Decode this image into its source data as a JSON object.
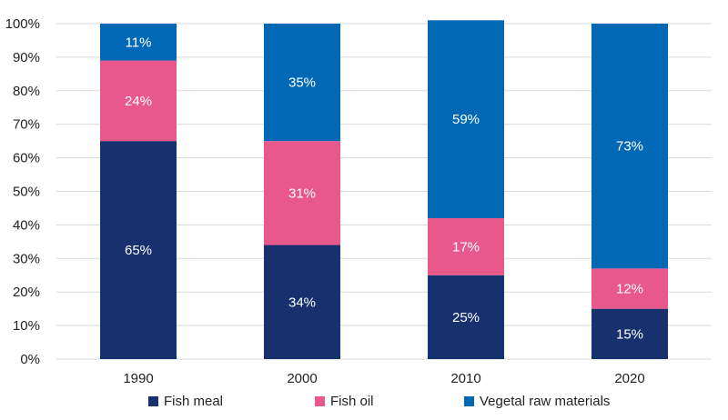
{
  "chart_data": {
    "type": "bar",
    "stacked": true,
    "categories": [
      "1990",
      "2000",
      "2010",
      "2020"
    ],
    "series": [
      {
        "name": "Fish meal",
        "color": "#17306e",
        "values": [
          65,
          34,
          25,
          15
        ],
        "labels": [
          "65%",
          "34%",
          "25%",
          "15%"
        ]
      },
      {
        "name": "Fish oil",
        "color": "#e8588a",
        "values": [
          24,
          31,
          17,
          12
        ],
        "labels": [
          "24%",
          "31%",
          "17%",
          "12%"
        ]
      },
      {
        "name": "Vegetal raw materials",
        "color": "#0068b5",
        "values": [
          11,
          35,
          59,
          73
        ],
        "labels": [
          "11%",
          "35%",
          "59%",
          "73%"
        ]
      }
    ],
    "ylim": [
      0,
      100
    ],
    "yticks": [
      "0%",
      "10%",
      "20%",
      "30%",
      "40%",
      "50%",
      "60%",
      "70%",
      "80%",
      "90%",
      "100%"
    ],
    "grid": true,
    "legend": "bottom",
    "title": "",
    "xlabel": "",
    "ylabel": ""
  }
}
